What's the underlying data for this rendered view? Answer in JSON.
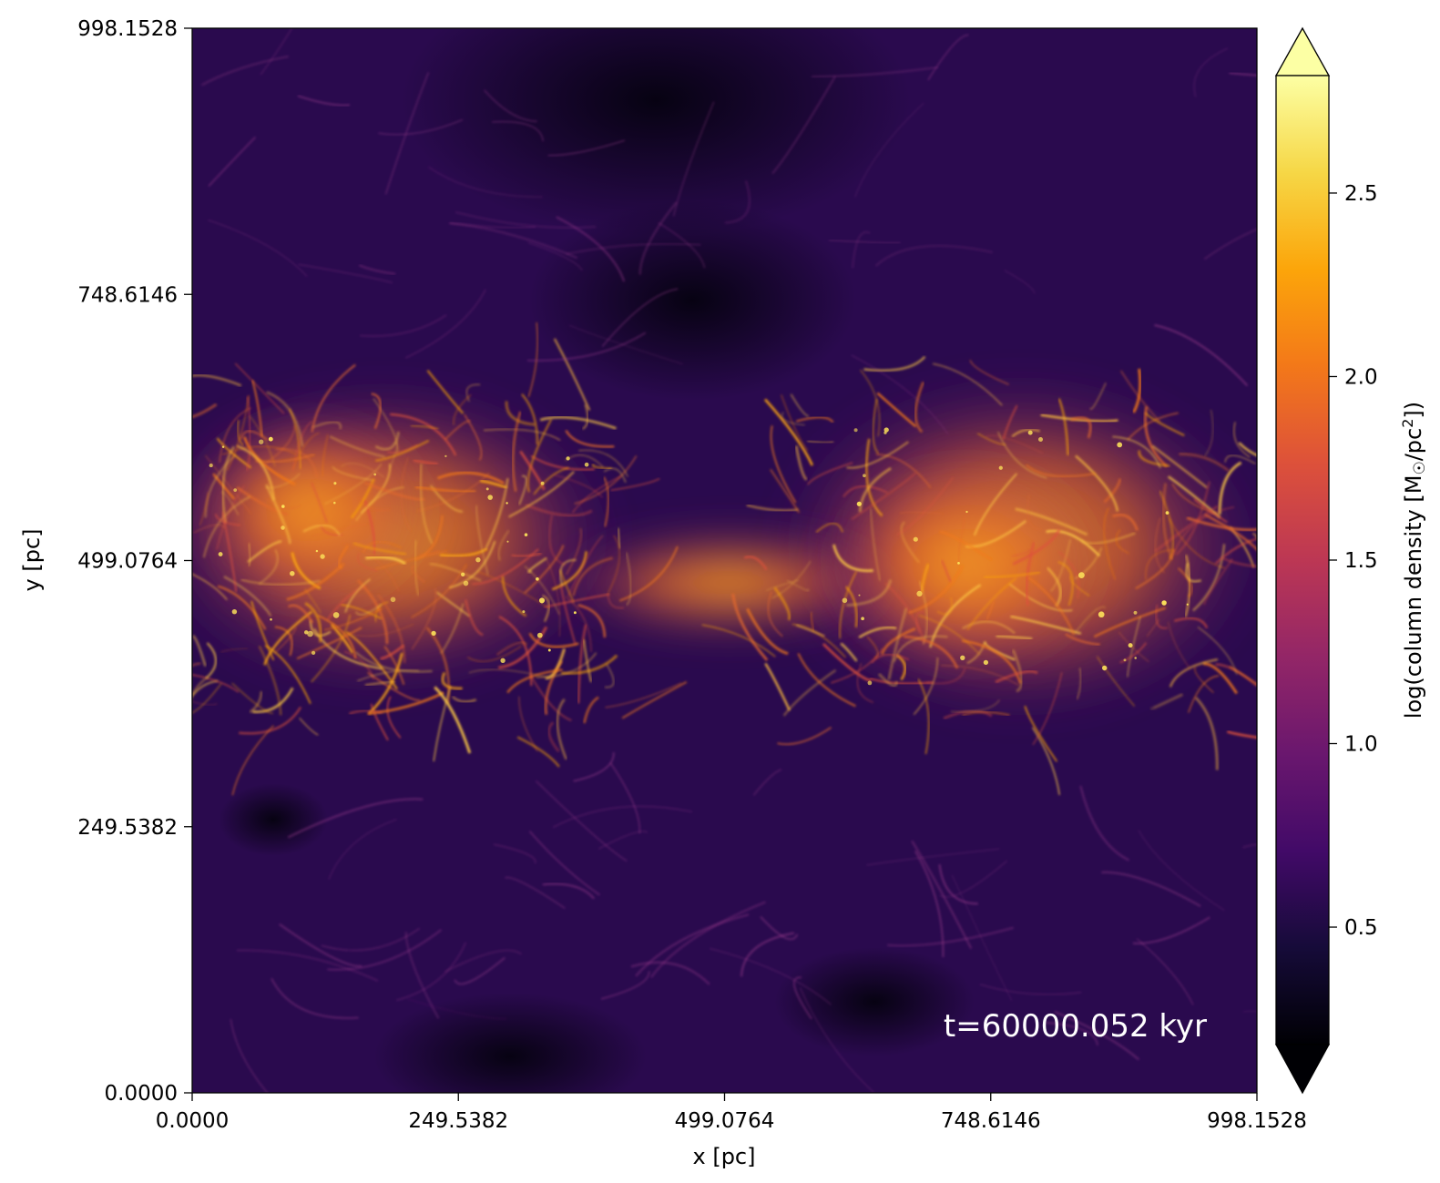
{
  "chart_data": {
    "type": "heatmap",
    "title": "",
    "xlabel": "x [pc]",
    "ylabel": "y [pc]",
    "xlim": [
      0.0,
      998.1528
    ],
    "ylim": [
      0.0,
      998.1528
    ],
    "x_ticks": [
      "0.0000",
      "249.5382",
      "499.0764",
      "748.6146",
      "998.1528"
    ],
    "y_ticks": [
      "0.0000",
      "249.5382",
      "499.0764",
      "748.6146",
      "998.1528"
    ],
    "x_tick_values": [
      0.0,
      249.5382,
      499.0764,
      748.6146,
      998.1528
    ],
    "y_tick_values": [
      0.0,
      249.5382,
      499.0764,
      748.6146,
      998.1528
    ],
    "annotation": "t=60000.052 kyr",
    "colormap": "inferno",
    "colorbar": {
      "label": "log(column density [M",
      "label_sun": "☉",
      "label_mid": "/pc",
      "label_sup": "2",
      "label_end": "])",
      "range": [
        0.18,
        2.82
      ],
      "extend": "both",
      "ticks": [
        "0.5",
        "1.0",
        "1.5",
        "2.0",
        "2.5"
      ],
      "tick_values": [
        0.5,
        1.0,
        1.5,
        2.0,
        2.5
      ]
    },
    "description_features": {
      "dense_band_center_y": 520,
      "dense_band_halfwidth": 160
    }
  }
}
